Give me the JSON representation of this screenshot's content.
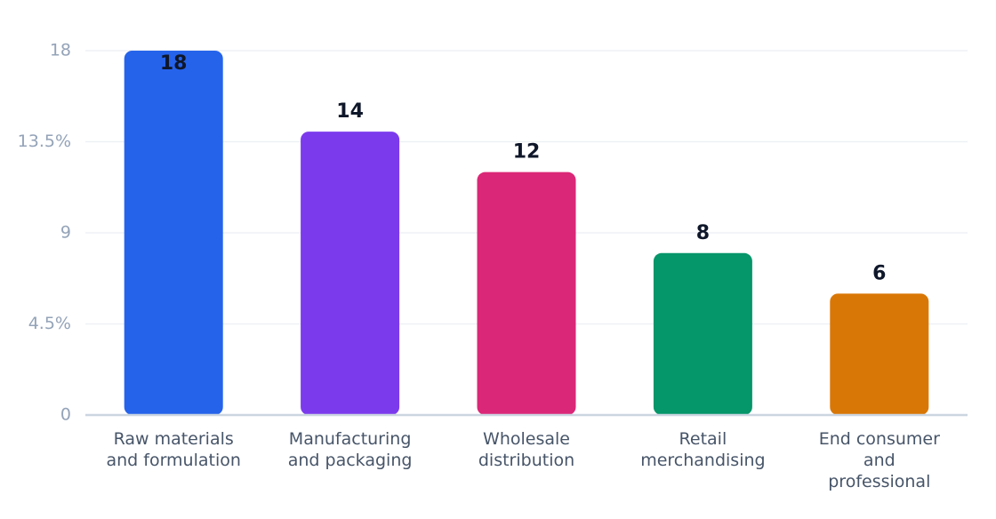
{
  "chart_data": {
    "type": "bar",
    "categories": [
      [
        "Raw materials",
        "and formulation"
      ],
      [
        "Manufacturing",
        "and packaging"
      ],
      [
        "Wholesale",
        "distribution"
      ],
      [
        "Retail",
        "merchandising"
      ],
      [
        "End consumer",
        "and",
        "professional"
      ]
    ],
    "values": [
      18,
      14,
      12,
      8,
      6
    ],
    "value_labels": [
      "18",
      "14",
      "12",
      "8",
      "6"
    ],
    "colors": [
      "#2563eb",
      "#7c3aed",
      "#db2777",
      "#059669",
      "#d97706"
    ],
    "y_ticks": [
      {
        "value": 0,
        "label": "0"
      },
      {
        "value": 4.5,
        "label": "4.5%"
      },
      {
        "value": 9,
        "label": "9"
      },
      {
        "value": 13.5,
        "label": "13.5%"
      },
      {
        "value": 18,
        "label": "18"
      }
    ],
    "ylim": [
      0,
      18
    ],
    "grid": true,
    "legend": "none"
  }
}
